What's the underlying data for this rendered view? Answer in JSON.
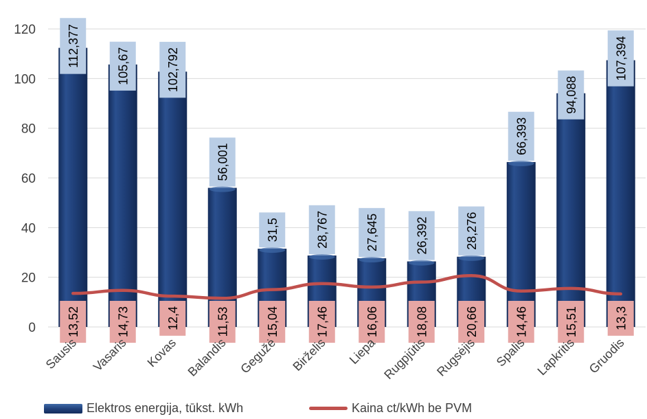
{
  "chart_data": {
    "type": "bar",
    "categories": [
      "Sausis",
      "Vasaris",
      "Kovas",
      "Balandis",
      "Gegužė",
      "Birželis",
      "Liepa",
      "Rugpjūtis",
      "Rugsėjis",
      "Spalis",
      "Lapkritis",
      "Gruodis"
    ],
    "series": [
      {
        "name": "Elektros energija, tūkst. kWh",
        "type": "bar",
        "color": "#1f3f78",
        "values": [
          112.377,
          105.67,
          102.792,
          56.001,
          31.5,
          28.767,
          27.645,
          26.392,
          28.276,
          66.393,
          94.088,
          107.394
        ],
        "labels": [
          "112,377",
          "105,67",
          "102,792",
          "56,001",
          "31,5",
          "28,767",
          "27,645",
          "26,392",
          "28,276",
          "66,393",
          "94,088",
          "107,394"
        ],
        "label_bg": "#b9cde5"
      },
      {
        "name": "Kaina ct/kWh be PVM",
        "type": "line",
        "color": "#c0504d",
        "values": [
          13.52,
          14.73,
          12.4,
          11.53,
          15.04,
          17.46,
          16.06,
          18.08,
          20.66,
          14.46,
          15.51,
          13.3
        ],
        "labels": [
          "13,52",
          "14,73",
          "12,4",
          "11,53",
          "15,04",
          "17,46",
          "16,06",
          "18,08",
          "20,66",
          "14,46",
          "15,51",
          "13,3"
        ],
        "label_bg": "#e6a6a4"
      }
    ],
    "yticks": [
      "0",
      "20",
      "40",
      "60",
      "80",
      "100",
      "120"
    ],
    "ylim": [
      0,
      125
    ],
    "grid": true,
    "legend_position": "bottom"
  }
}
